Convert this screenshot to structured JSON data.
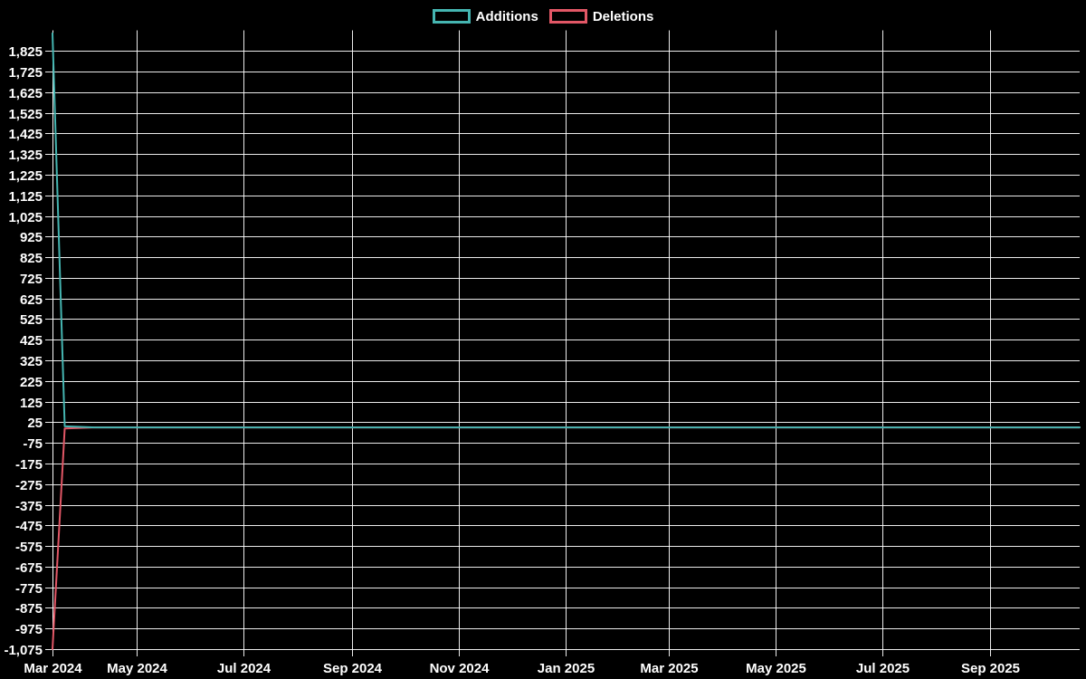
{
  "app": {
    "background": "#000000",
    "text_color": "#ffffff",
    "grid_color": "rgba(255,255,255,0.92)"
  },
  "legend": {
    "items": [
      {
        "label": "Additions",
        "color": "#45b5b1"
      },
      {
        "label": "Deletions",
        "color": "#e25766"
      }
    ]
  },
  "chart_data": {
    "type": "line",
    "title": "",
    "xlabel": "",
    "ylabel": "",
    "grid": true,
    "legend_position": "top-center",
    "x_axis": {
      "type": "time",
      "start": "2024-03-14",
      "end": "2025-10-22",
      "ticks": [
        {
          "label": "Mar 2024",
          "date": "2024-03-14"
        },
        {
          "label": "May 2024",
          "date": "2024-05-01"
        },
        {
          "label": "Jul 2024",
          "date": "2024-07-01"
        },
        {
          "label": "Sep 2024",
          "date": "2024-09-01"
        },
        {
          "label": "Nov 2024",
          "date": "2024-11-01"
        },
        {
          "label": "Jan 2025",
          "date": "2025-01-01"
        },
        {
          "label": "Mar 2025",
          "date": "2025-03-01"
        },
        {
          "label": "May 2025",
          "date": "2025-05-01"
        },
        {
          "label": "Jul 2025",
          "date": "2025-07-01"
        },
        {
          "label": "Sep 2025",
          "date": "2025-09-01"
        }
      ]
    },
    "y_axis": {
      "min": -1075,
      "max": 1925,
      "tick_values": [
        1825,
        1725,
        1625,
        1525,
        1425,
        1325,
        1225,
        1125,
        1025,
        925,
        825,
        725,
        625,
        525,
        425,
        325,
        225,
        125,
        25,
        -75,
        -175,
        -275,
        -375,
        -475,
        -575,
        -675,
        -775,
        -875,
        -975,
        -1075
      ],
      "number_format": "thousands-comma"
    },
    "series": [
      {
        "name": "Additions",
        "color": "#45b5b1",
        "points": [
          [
            "2024-03-14",
            1910
          ],
          [
            "2024-03-21",
            5
          ],
          [
            "2024-04-07",
            0
          ],
          [
            "2024-05-05",
            0
          ],
          [
            "2024-06-02",
            0
          ],
          [
            "2024-07-07",
            0
          ],
          [
            "2024-08-04",
            0
          ],
          [
            "2024-09-01",
            0
          ],
          [
            "2024-10-06",
            0
          ],
          [
            "2024-11-03",
            0
          ],
          [
            "2024-12-01",
            0
          ],
          [
            "2025-01-05",
            0
          ],
          [
            "2025-02-02",
            0
          ],
          [
            "2025-03-02",
            0
          ],
          [
            "2025-04-06",
            0
          ],
          [
            "2025-05-04",
            0
          ],
          [
            "2025-06-01",
            0
          ],
          [
            "2025-07-06",
            0
          ],
          [
            "2025-08-03",
            0
          ],
          [
            "2025-09-07",
            0
          ],
          [
            "2025-10-22",
            0
          ]
        ]
      },
      {
        "name": "Deletions",
        "color": "#e25766",
        "points": [
          [
            "2024-03-14",
            -1075
          ],
          [
            "2024-03-21",
            -5
          ],
          [
            "2024-04-07",
            0
          ],
          [
            "2024-05-05",
            0
          ],
          [
            "2024-06-02",
            0
          ],
          [
            "2024-07-07",
            0
          ],
          [
            "2024-08-04",
            0
          ],
          [
            "2024-09-01",
            0
          ],
          [
            "2024-10-06",
            0
          ],
          [
            "2024-11-03",
            0
          ],
          [
            "2024-12-01",
            0
          ],
          [
            "2025-01-05",
            0
          ],
          [
            "2025-02-02",
            0
          ],
          [
            "2025-03-02",
            0
          ],
          [
            "2025-04-06",
            0
          ],
          [
            "2025-05-04",
            0
          ],
          [
            "2025-06-01",
            0
          ],
          [
            "2025-07-06",
            0
          ],
          [
            "2025-08-03",
            0
          ],
          [
            "2025-09-07",
            0
          ],
          [
            "2025-10-22",
            0
          ]
        ]
      }
    ]
  }
}
